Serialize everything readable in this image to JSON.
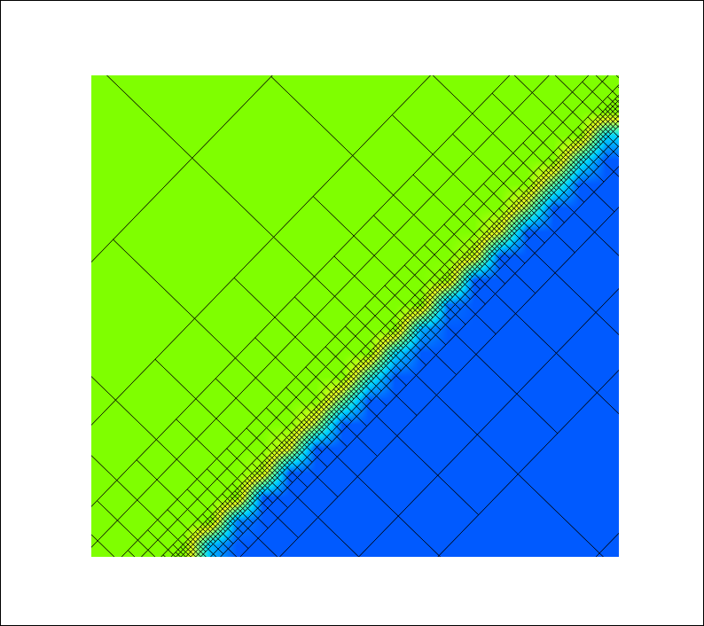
{
  "chart_data": {
    "type": "heatmap",
    "xlim": [
      0,
      20
    ],
    "ylim": [
      0,
      20
    ],
    "zlim": [
      0,
      1
    ],
    "colors": [
      "#005aff",
      "#00d0ff",
      "#60ffa0",
      "#e8ff20",
      "#7fff00"
    ],
    "tick_labels": false,
    "grid": true,
    "z": [
      [
        1,
        1,
        1,
        1,
        0.2,
        0,
        0,
        0,
        0,
        0,
        0,
        0,
        0,
        0,
        0,
        0,
        0,
        0,
        0,
        0
      ],
      [
        1,
        1,
        1,
        1,
        1,
        0.09,
        0,
        0,
        0,
        0,
        0,
        0,
        0,
        0,
        0,
        0,
        0,
        0,
        0,
        0
      ],
      [
        1,
        1,
        1,
        1,
        1,
        0.98,
        0,
        0,
        0,
        0,
        0,
        0,
        0,
        0,
        0,
        0,
        0,
        0,
        0,
        0
      ],
      [
        1,
        1,
        1,
        1,
        1,
        1,
        0.86,
        0,
        0,
        0,
        0,
        0,
        0,
        0,
        0,
        0,
        0,
        0,
        0,
        0
      ],
      [
        1,
        1,
        1,
        1,
        1,
        1,
        1,
        0.75,
        0,
        0,
        0,
        0,
        0,
        0,
        0,
        0,
        0,
        0,
        0,
        0
      ],
      [
        1,
        1,
        1,
        1,
        1,
        1,
        1,
        1,
        0.63,
        0,
        0,
        0,
        0,
        0,
        0,
        0,
        0,
        0,
        0,
        0
      ],
      [
        1,
        1,
        1,
        1,
        1,
        1,
        1,
        1,
        1,
        0.52,
        0,
        0,
        0,
        0,
        0,
        0,
        0,
        0,
        0,
        0
      ],
      [
        1,
        1,
        1,
        1,
        1,
        1,
        1,
        1,
        1,
        1,
        0.41,
        0,
        0,
        0,
        0,
        0,
        0,
        0,
        0,
        0
      ],
      [
        1,
        1,
        1,
        1,
        1,
        1,
        1,
        1,
        1,
        1,
        1,
        0.29,
        0,
        0,
        0,
        0,
        0,
        0,
        0,
        0
      ],
      [
        1,
        1,
        1,
        1,
        1,
        1,
        1,
        1,
        1,
        1,
        1,
        1,
        0.18,
        0,
        0,
        0,
        0,
        0,
        0,
        0
      ],
      [
        1,
        1,
        1,
        1,
        1,
        1,
        1,
        1,
        1,
        1,
        1,
        1,
        1,
        0.06,
        0,
        0,
        0,
        0,
        0,
        0
      ],
      [
        1,
        1,
        1,
        1,
        1,
        1,
        1,
        1,
        1,
        1,
        1,
        1,
        1,
        0.95,
        0,
        0,
        0,
        0,
        0,
        0
      ],
      [
        1,
        1,
        1,
        1,
        1,
        1,
        1,
        1,
        1,
        1,
        1,
        1,
        1,
        1,
        0.84,
        0,
        0,
        0,
        0,
        0
      ],
      [
        1,
        1,
        1,
        1,
        1,
        1,
        1,
        1,
        1,
        1,
        1,
        1,
        1,
        1,
        1,
        0.72,
        0,
        0,
        0,
        0
      ],
      [
        1,
        1,
        1,
        1,
        1,
        1,
        1,
        1,
        1,
        1,
        1,
        1,
        1,
        1,
        1,
        1,
        0.61,
        0,
        0,
        0
      ],
      [
        1,
        1,
        1,
        1,
        1,
        1,
        1,
        1,
        1,
        1,
        1,
        1,
        1,
        1,
        1,
        1,
        1,
        0.49,
        0,
        0
      ],
      [
        1,
        1,
        1,
        1,
        1,
        1,
        1,
        1,
        1,
        1,
        1,
        1,
        1,
        1,
        1,
        1,
        1,
        1,
        0.38,
        0
      ],
      [
        1,
        1,
        1,
        1,
        1,
        1,
        1,
        1,
        1,
        1,
        1,
        1,
        1,
        1,
        1,
        1,
        1,
        1,
        1,
        0.27
      ],
      [
        1,
        1,
        1,
        1,
        1,
        1,
        1,
        1,
        1,
        1,
        1,
        1,
        1,
        1,
        1,
        1,
        1,
        1,
        1,
        1
      ],
      [
        1,
        1,
        1,
        1,
        1,
        1,
        1,
        1,
        1,
        1,
        1,
        1,
        1,
        1,
        1,
        1,
        1,
        1,
        1,
        1
      ]
    ]
  }
}
